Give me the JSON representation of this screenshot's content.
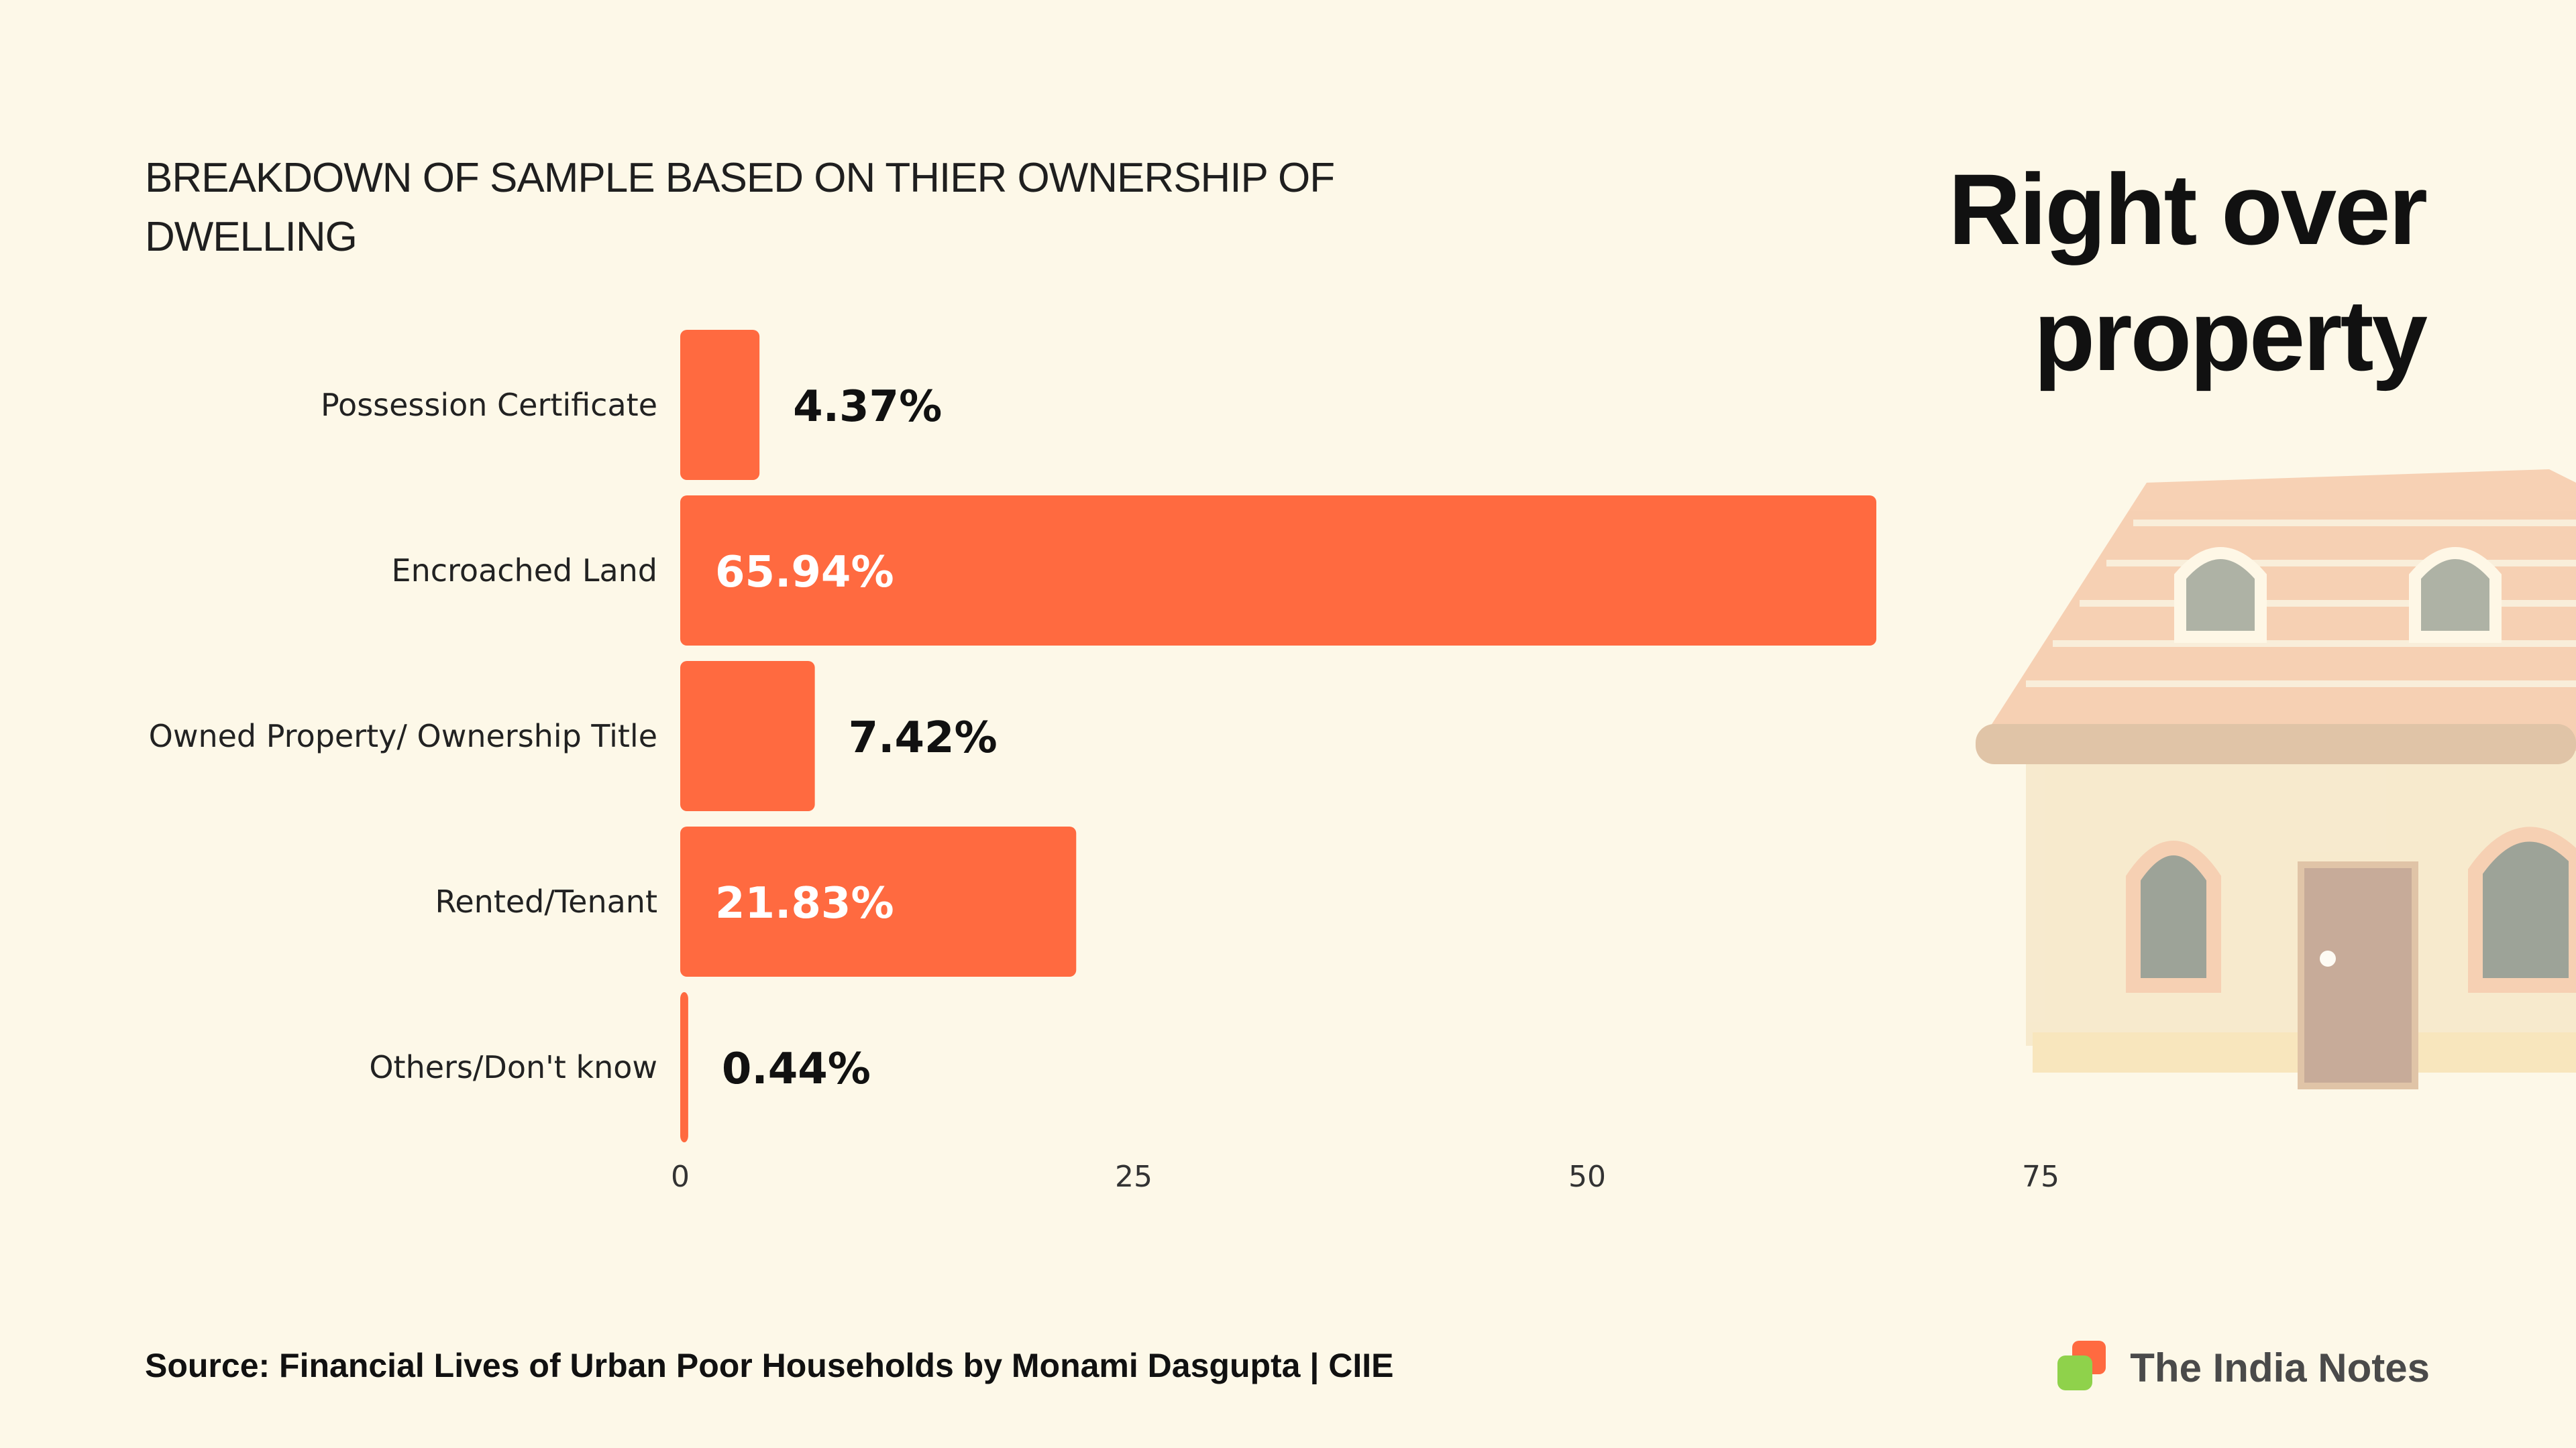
{
  "title": "BREAKDOWN OF SAMPLE BASED ON THIER OWNERSHIP OF DWELLING",
  "headline_line1": "Right over",
  "headline_line2": "property",
  "source": "Source: Financial Lives of Urban Poor Households by Monami Dasgupta | CIIE",
  "brand": "The India Notes",
  "colors": {
    "bar": "#ff6a40",
    "background": "#fdf8e8"
  },
  "chart_data": {
    "type": "bar",
    "orientation": "horizontal",
    "title": "BREAKDOWN OF SAMPLE BASED ON THIER OWNERSHIP OF DWELLING",
    "categories": [
      "Possession Certificate",
      "Encroached Land",
      "Owned Property/ Ownership Title",
      "Rented/Tenant",
      "Others/Don't know"
    ],
    "values": [
      4.37,
      65.94,
      7.42,
      21.83,
      0.44
    ],
    "value_labels": [
      "4.37%",
      "65.94%",
      "7.42%",
      "21.83%",
      "0.44%"
    ],
    "xlim": [
      0,
      75
    ],
    "xticks": [
      0,
      25,
      50,
      75
    ],
    "xlabel": "",
    "ylabel": "",
    "grid": false
  }
}
